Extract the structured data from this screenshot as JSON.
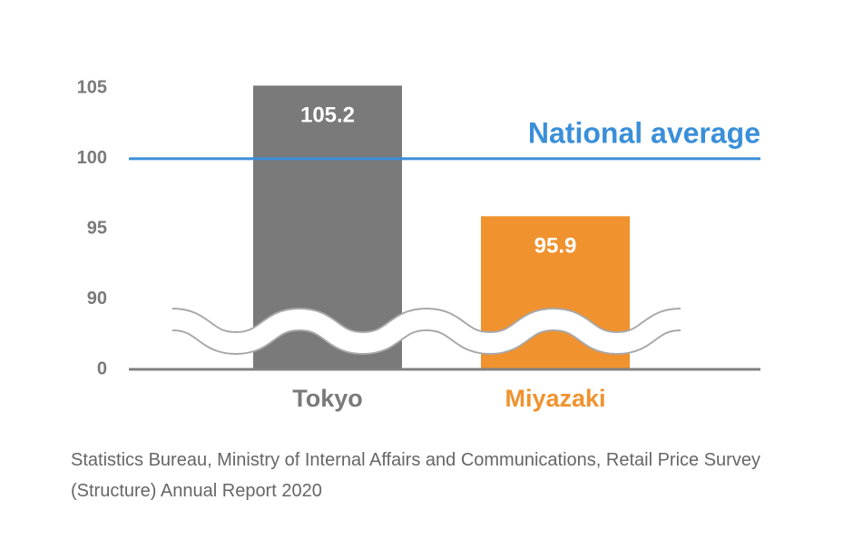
{
  "chart_data": {
    "type": "bar",
    "categories": [
      "Tokyo",
      "Miyazaki"
    ],
    "values": [
      105.2,
      95.9
    ],
    "colors": [
      "#7a7a7a",
      "#f0922e"
    ],
    "ylim": [
      0,
      107
    ],
    "axis_break": [
      0,
      85
    ],
    "yticks": [
      0,
      90,
      95,
      100,
      105
    ],
    "reference_line": {
      "value": 100,
      "label": "National average",
      "color": "#3a8fd9"
    },
    "source": "Statistics Bureau, Ministry of Internal Affairs and Communications, Retail Price Survey (Structure) Annual Report 2020"
  }
}
